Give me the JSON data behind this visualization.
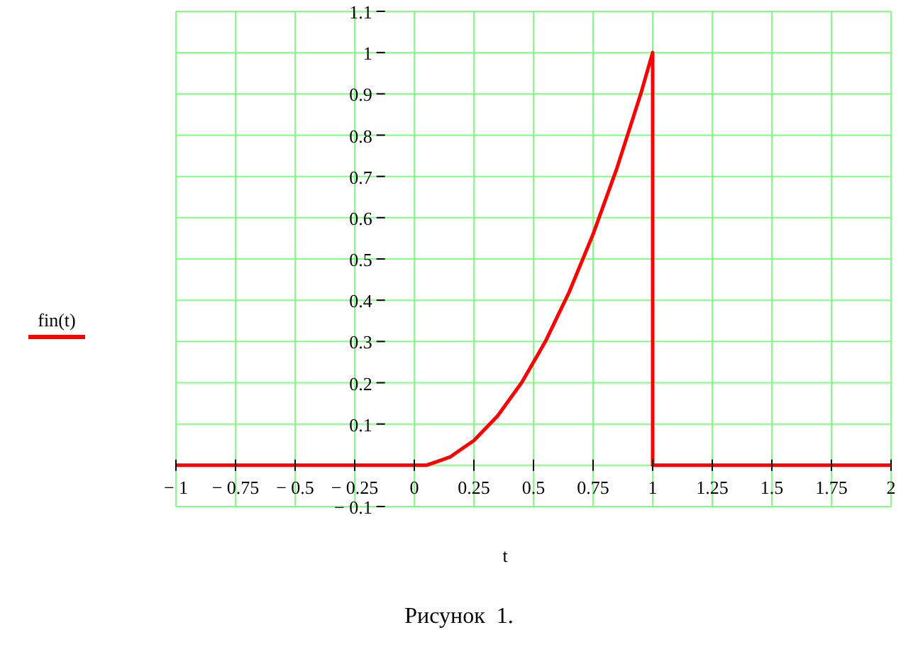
{
  "chart_data": {
    "type": "line",
    "xlabel": "t",
    "annotations": [
      "Рисунок  1."
    ],
    "series": [
      {
        "name": "fin(t)",
        "color": "#ff0000",
        "x": [
          -1,
          0,
          0.05,
          0.1,
          0.15,
          0.2,
          0.25,
          0.3,
          0.35,
          0.4,
          0.45,
          0.5,
          0.55,
          0.6,
          0.65,
          0.7,
          0.75,
          0.8,
          0.85,
          0.9,
          0.95,
          1,
          1,
          2
        ],
        "values": [
          0,
          0,
          0,
          0.01,
          0.02,
          0.04,
          0.06,
          0.09,
          0.12,
          0.16,
          0.2,
          0.25,
          0.3,
          0.36,
          0.42,
          0.49,
          0.56,
          0.64,
          0.72,
          0.81,
          0.9,
          1,
          0,
          0
        ]
      }
    ],
    "xlim": [
      -1,
      2
    ],
    "ylim": [
      -0.1,
      1.1
    ],
    "xticks": [
      {
        "value": -1,
        "label": "− 1"
      },
      {
        "value": -0.75,
        "label": "− 0.75"
      },
      {
        "value": -0.5,
        "label": "− 0.5"
      },
      {
        "value": -0.25,
        "label": "− 0.25"
      },
      0,
      0.25,
      0.5,
      0.75,
      1,
      1.25,
      1.5,
      1.75,
      2
    ],
    "yticks": [
      {
        "value": -0.1,
        "label": "− 0.1"
      },
      {
        "value": 0,
        "label": null
      },
      0.1,
      0.2,
      0.3,
      0.4,
      0.5,
      0.6,
      0.7,
      0.8,
      0.9,
      1,
      1.1
    ],
    "grid": true,
    "legend": "left",
    "marker": "none",
    "line_style": "solid"
  }
}
